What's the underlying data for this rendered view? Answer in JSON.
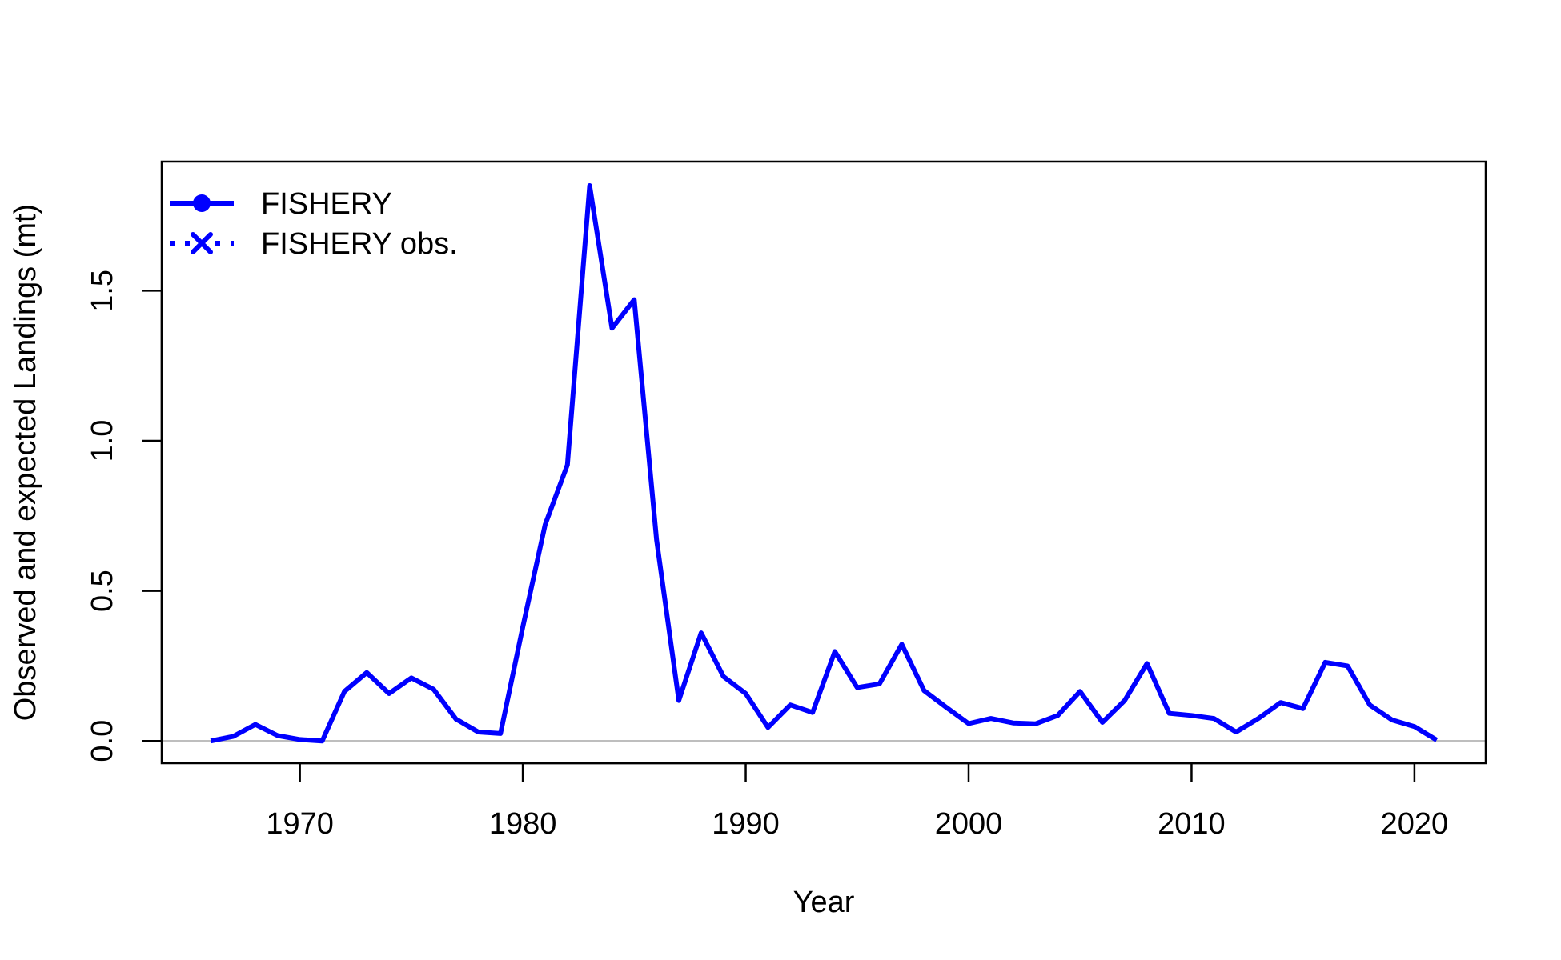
{
  "chart_data": {
    "type": "line",
    "title": "",
    "xlabel": "Year",
    "ylabel": "Observed and expected Landings (mt)",
    "xlim": [
      1963.8,
      2023.2
    ],
    "ylim": [
      -0.074,
      1.93
    ],
    "x_ticks": [
      1970,
      1980,
      1990,
      2000,
      2010,
      2020
    ],
    "x_tick_labels": [
      "1970",
      "1980",
      "1990",
      "2000",
      "2010",
      "2020"
    ],
    "y_ticks": [
      0.0,
      0.5,
      1.0,
      1.5
    ],
    "y_tick_labels": [
      "0.0",
      "0.5",
      "1.0",
      "1.5"
    ],
    "reference_line": {
      "y": 0,
      "color": "#bebebe"
    },
    "grid": false,
    "legend": {
      "position": "top-left",
      "entries": [
        {
          "label": "FISHERY",
          "style": "solid",
          "marker": "circle"
        },
        {
          "label": "FISHERY obs.",
          "style": "dotted",
          "marker": "x"
        }
      ]
    },
    "colors": {
      "series": "#0000ff",
      "axis": "#000000"
    },
    "series": [
      {
        "name": "FISHERY",
        "style": "solid",
        "x": [
          1966,
          1967,
          1968,
          1969,
          1970,
          1971,
          1972,
          1973,
          1974,
          1975,
          1976,
          1977,
          1978,
          1979,
          1980,
          1981,
          1982,
          1983,
          1984,
          1985,
          1986,
          1987,
          1988,
          1989,
          1990,
          1991,
          1992,
          1993,
          1994,
          1995,
          1996,
          1997,
          1998,
          1999,
          2000,
          2001,
          2002,
          2003,
          2004,
          2005,
          2006,
          2007,
          2008,
          2009,
          2010,
          2011,
          2012,
          2013,
          2014,
          2015,
          2016,
          2017,
          2018,
          2019,
          2020,
          2021
        ],
        "values": [
          0.0,
          0.015,
          0.055,
          0.018,
          0.005,
          0.0,
          0.165,
          0.228,
          0.158,
          0.21,
          0.172,
          0.073,
          0.03,
          0.025,
          0.38,
          0.72,
          0.92,
          1.85,
          1.375,
          1.47,
          0.67,
          0.135,
          0.36,
          0.215,
          0.158,
          0.045,
          0.12,
          0.095,
          0.298,
          0.178,
          0.19,
          0.322,
          0.168,
          0.112,
          0.058,
          0.075,
          0.06,
          0.057,
          0.085,
          0.165,
          0.062,
          0.135,
          0.258,
          0.092,
          0.085,
          0.075,
          0.03,
          0.075,
          0.128,
          0.108,
          0.262,
          0.25,
          0.12,
          0.07,
          0.048,
          0.003
        ]
      }
    ]
  }
}
